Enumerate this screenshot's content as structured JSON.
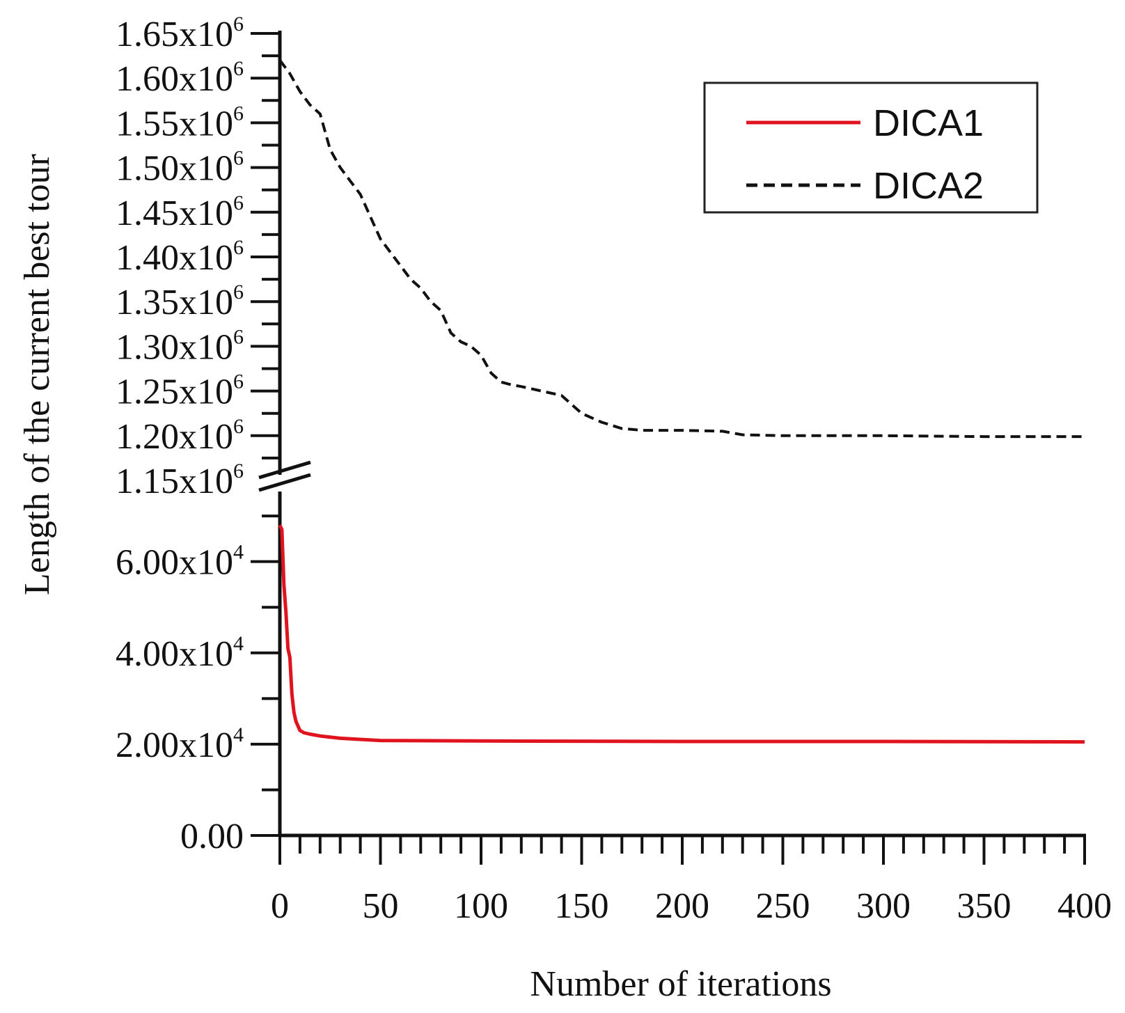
{
  "chart_data": {
    "type": "line",
    "xlabel": "Number of iterations",
    "ylabel": "Length of the current best tour",
    "xlim": [
      0,
      400
    ],
    "x_ticks": [
      "0",
      "50",
      "100",
      "150",
      "200",
      "250",
      "300",
      "350",
      "400"
    ],
    "y_axis_break": true,
    "y_ticks_lower": [
      {
        "value": 0,
        "base": "0.00",
        "exp": ""
      },
      {
        "value": 20000,
        "base": "2.00x10",
        "exp": "4"
      },
      {
        "value": 40000,
        "base": "4.00x10",
        "exp": "4"
      },
      {
        "value": 60000,
        "base": "6.00x10",
        "exp": "4"
      }
    ],
    "y_ticks_upper": [
      {
        "value": 1150000,
        "base": "1.15x10",
        "exp": "6"
      },
      {
        "value": 1200000,
        "base": "1.20x10",
        "exp": "6"
      },
      {
        "value": 1250000,
        "base": "1.25x10",
        "exp": "6"
      },
      {
        "value": 1300000,
        "base": "1.30x10",
        "exp": "6"
      },
      {
        "value": 1350000,
        "base": "1.35x10",
        "exp": "6"
      },
      {
        "value": 1400000,
        "base": "1.40x10",
        "exp": "6"
      },
      {
        "value": 1450000,
        "base": "1.45x10",
        "exp": "6"
      },
      {
        "value": 1500000,
        "base": "1.50x10",
        "exp": "6"
      },
      {
        "value": 1550000,
        "base": "1.55x10",
        "exp": "6"
      },
      {
        "value": 1600000,
        "base": "1.60x10",
        "exp": "6"
      },
      {
        "value": 1650000,
        "base": "1.65x10",
        "exp": "6"
      }
    ],
    "legend_position": "top-right",
    "series": [
      {
        "name": "DICA1",
        "color": "#e0141e",
        "style": "solid",
        "x": [
          0,
          1,
          2,
          3,
          4,
          5,
          6,
          7,
          8,
          10,
          12,
          15,
          20,
          30,
          50,
          100,
          200,
          300,
          400
        ],
        "y": [
          68000,
          67000,
          55000,
          49000,
          41000,
          39000,
          31000,
          27000,
          25000,
          23000,
          22500,
          22200,
          21800,
          21300,
          20800,
          20700,
          20600,
          20600,
          20500
        ]
      },
      {
        "name": "DICA2",
        "color": "#111111",
        "style": "dashed",
        "x": [
          0,
          5,
          10,
          15,
          20,
          25,
          30,
          35,
          40,
          45,
          50,
          55,
          60,
          65,
          70,
          75,
          80,
          85,
          90,
          95,
          100,
          105,
          110,
          115,
          120,
          130,
          140,
          150,
          160,
          170,
          180,
          200,
          220,
          230,
          250,
          300,
          350,
          400
        ],
        "y": [
          1620000,
          1605000,
          1585000,
          1570000,
          1560000,
          1520000,
          1500000,
          1485000,
          1470000,
          1445000,
          1420000,
          1405000,
          1390000,
          1375000,
          1365000,
          1350000,
          1340000,
          1315000,
          1305000,
          1300000,
          1290000,
          1270000,
          1260000,
          1257000,
          1255000,
          1250000,
          1245000,
          1225000,
          1215000,
          1208000,
          1206000,
          1206000,
          1205000,
          1201000,
          1200000,
          1200000,
          1199000,
          1199000
        ]
      }
    ]
  }
}
